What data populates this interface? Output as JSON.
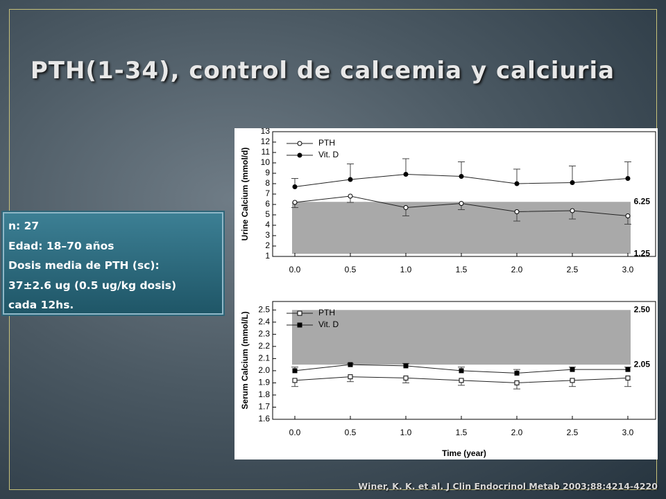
{
  "title": "PTH(1-34), control de calcemia y calciuria",
  "info_box": [
    "n: 27",
    "Edad: 18–70 años",
    "Dosis media de PTH (sc):",
    "37±2.6 ug (0.5 ug/kg dosis)",
    "cada 12hs."
  ],
  "citation": "Winer, K. K. et al. J Clin Endocrinol Metab 2003;88:4214-4220",
  "chart_data": [
    {
      "type": "line",
      "ylabel": "Urine Calcium (mmol/d)",
      "x": [
        0,
        0.5,
        1,
        1.5,
        2,
        2.5,
        3
      ],
      "xlim": [
        -0.2,
        3.25
      ],
      "xticks": [
        {
          "value": 0,
          "label": "0.0"
        },
        0.5,
        {
          "value": 1,
          "label": "1.0"
        },
        1.5,
        {
          "value": 2,
          "label": "2.0"
        },
        2.5,
        {
          "value": 3,
          "label": "3.0"
        }
      ],
      "ylim": [
        1,
        13
      ],
      "yticks": [
        1,
        2,
        3,
        4,
        5,
        6,
        7,
        8,
        9,
        10,
        11,
        12,
        13
      ],
      "band": [
        1.25,
        6.25
      ],
      "band_color": "#a9a9a9",
      "series": [
        {
          "name": "PTH",
          "color": "#ffffff",
          "marker": "circle",
          "error_side": "down",
          "values": [
            6.2,
            6.8,
            5.7,
            6.1,
            5.3,
            5.4,
            4.9
          ],
          "errors": [
            0.5,
            0.6,
            0.8,
            0.6,
            0.9,
            0.8,
            0.8
          ]
        },
        {
          "name": "Vit. D",
          "color": "#000000",
          "marker": "circle",
          "error_side": "up",
          "values": [
            7.7,
            8.4,
            8.9,
            8.7,
            8.0,
            8.1,
            8.5
          ],
          "errors": [
            0.8,
            1.5,
            1.5,
            1.4,
            1.4,
            1.6,
            1.6
          ]
        }
      ]
    },
    {
      "type": "line",
      "ylabel": "Serum Calcium (mmol/L)",
      "xlabel": "Time (year)",
      "x": [
        0,
        0.5,
        1,
        1.5,
        2,
        2.5,
        3
      ],
      "xlim": [
        -0.2,
        3.25
      ],
      "xticks": [
        {
          "value": 0,
          "label": "0.0"
        },
        0.5,
        {
          "value": 1,
          "label": "1.0"
        },
        1.5,
        {
          "value": 2,
          "label": "2.0"
        },
        2.5,
        {
          "value": 3,
          "label": "3.0"
        }
      ],
      "ylim": [
        1.6,
        2.57
      ],
      "yticks": [
        1.6,
        1.7,
        1.8,
        1.9,
        {
          "value": 2,
          "label": "2.0"
        },
        2.1,
        2.2,
        2.3,
        2.4,
        2.5
      ],
      "band": [
        2.05,
        {
          "value": 2.5,
          "label": "2.50"
        }
      ],
      "band_color": "#a9a9a9",
      "series": [
        {
          "name": "PTH",
          "color": "#ffffff",
          "marker": "square",
          "error_side": "down",
          "values": [
            1.92,
            1.95,
            1.94,
            1.92,
            1.9,
            1.92,
            1.94
          ],
          "errors": [
            0.05,
            0.04,
            0.04,
            0.04,
            0.05,
            0.05,
            0.07
          ]
        },
        {
          "name": "Vit. D",
          "color": "#000000",
          "marker": "square",
          "error_side": "up",
          "values": [
            2.0,
            2.05,
            2.04,
            2.0,
            1.98,
            2.01,
            2.01
          ],
          "errors": [
            0.03,
            0.01,
            0.02,
            0.03,
            0.03,
            0.02,
            0.02
          ]
        }
      ]
    }
  ]
}
